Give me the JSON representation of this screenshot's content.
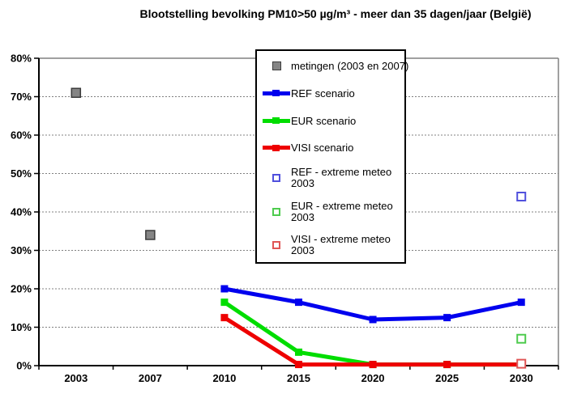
{
  "title": "Blootstelling bevolking PM10>50 µg/m³ - meer dan 35 dagen/jaar (België)",
  "colors": {
    "ref_line": "#0000ee",
    "eur_line": "#00dd00",
    "visi_line": "#ee0000",
    "metingen_fill": "#858585",
    "metingen_border": "#3c3c3c",
    "ref_extreme": "#5050dd",
    "eur_extreme": "#4ecb4e",
    "visi_extreme": "#e05555",
    "grid": "#808080",
    "axis": "#000000",
    "plot_border": "#808080"
  },
  "legend": {
    "items": [
      {
        "id": "metingen",
        "swatch": "filled-square",
        "color": "#858585",
        "border": "#3c3c3c",
        "lines": [
          "metingen (2003 en 2007)"
        ]
      },
      {
        "id": "ref",
        "swatch": "line",
        "color": "#0000ee",
        "lines": [
          "REF scenario"
        ]
      },
      {
        "id": "eur",
        "swatch": "line",
        "color": "#00dd00",
        "lines": [
          "EUR scenario"
        ]
      },
      {
        "id": "visi",
        "swatch": "line",
        "color": "#ee0000",
        "lines": [
          "VISI scenario"
        ]
      },
      {
        "id": "ref-extreme",
        "swatch": "open-square",
        "color": "#5050dd",
        "lines": [
          "REF - extreme meteo",
          "2003"
        ]
      },
      {
        "id": "eur-extreme",
        "swatch": "open-square",
        "color": "#4ecb4e",
        "lines": [
          "EUR - extreme meteo",
          "2003"
        ]
      },
      {
        "id": "visi-extreme",
        "swatch": "open-square",
        "color": "#e05555",
        "lines": [
          "VISI - extreme meteo",
          "2003"
        ]
      }
    ]
  },
  "chart_data": {
    "type": "line",
    "title": "Blootstelling bevolking PM10>50 µg/m³ - meer dan 35 dagen/jaar (België)",
    "categories": [
      "2003",
      "2007",
      "2010",
      "2015",
      "2020",
      "2025",
      "2030"
    ],
    "ylim": [
      0,
      80
    ],
    "ytick_step": 10,
    "ytick_labels": [
      "0%",
      "10%",
      "20%",
      "30%",
      "40%",
      "50%",
      "60%",
      "70%",
      "80%"
    ],
    "grid": "horizontal-dashed",
    "legend_position": "inside-top-center",
    "series": [
      {
        "id": "metingen",
        "name": "metingen (2003 en 2007)",
        "type": "scatter",
        "marker": "filled-square",
        "color": "#858585",
        "border": "#3c3c3c",
        "points": [
          {
            "x": "2003",
            "y": 71
          },
          {
            "x": "2007",
            "y": 34
          }
        ]
      },
      {
        "id": "ref",
        "name": "REF scenario",
        "type": "line",
        "color": "#0000ee",
        "x": [
          "2010",
          "2015",
          "2020",
          "2025",
          "2030"
        ],
        "values": [
          20,
          16.5,
          12,
          12.5,
          16.5
        ]
      },
      {
        "id": "eur",
        "name": "EUR scenario",
        "type": "line",
        "color": "#00dd00",
        "x": [
          "2010",
          "2015",
          "2020",
          "2025",
          "2030"
        ],
        "values": [
          16.5,
          3.5,
          0.3,
          0.3,
          0.3
        ]
      },
      {
        "id": "visi",
        "name": "VISI scenario",
        "type": "line",
        "color": "#ee0000",
        "x": [
          "2010",
          "2015",
          "2020",
          "2025",
          "2030"
        ],
        "values": [
          12.5,
          0.3,
          0.3,
          0.3,
          0.3
        ]
      },
      {
        "id": "ref-extreme",
        "name": "REF - extreme meteo 2003",
        "type": "scatter",
        "marker": "open-square",
        "color": "#5050dd",
        "points": [
          {
            "x": "2030",
            "y": 44
          }
        ]
      },
      {
        "id": "eur-extreme",
        "name": "EUR - extreme meteo 2003",
        "type": "scatter",
        "marker": "open-square",
        "color": "#4ecb4e",
        "points": [
          {
            "x": "2030",
            "y": 7
          }
        ]
      },
      {
        "id": "visi-extreme",
        "name": "VISI - extreme meteo 2003",
        "type": "scatter",
        "marker": "open-square",
        "color": "#e05555",
        "points": [
          {
            "x": "2030",
            "y": 0.5
          }
        ]
      }
    ]
  }
}
